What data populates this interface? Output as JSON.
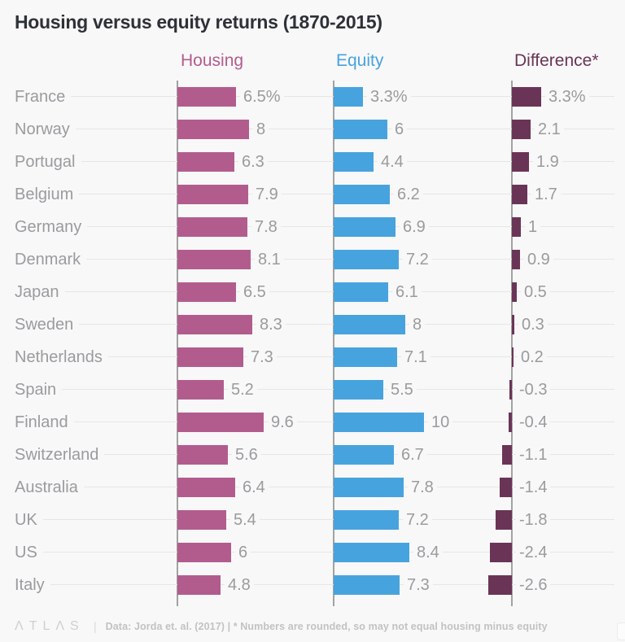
{
  "title": "Housing versus equity returns (1870-2015)",
  "palette": {
    "background": "#f8f8f8",
    "housing": "#b25c8e",
    "equity": "#47a3de",
    "difference": "#6a3457",
    "label_gray": "#9b9b9f",
    "axis_gray": "#a2a2a2",
    "hairline_gray": "#e6e6e6",
    "title_color": "#2e3137"
  },
  "chart_data": {
    "type": "bar",
    "orientation": "horizontal",
    "title": "Housing versus equity returns (1870-2015)",
    "unit": "% annual return",
    "legend_position": "column-headers-above-panels",
    "grid": "row-hairlines",
    "categories": [
      "France",
      "Norway",
      "Portugal",
      "Belgium",
      "Germany",
      "Denmark",
      "Japan",
      "Sweden",
      "Netherlands",
      "Spain",
      "Finland",
      "Switzerland",
      "Australia",
      "UK",
      "US",
      "Italy"
    ],
    "series": [
      {
        "name": "Housing",
        "color": "#b25c8e",
        "values": [
          6.5,
          8,
          6.3,
          7.9,
          7.8,
          8.1,
          6.5,
          8.3,
          7.3,
          5.2,
          9.6,
          5.6,
          6.4,
          5.4,
          6,
          4.8
        ],
        "labels": [
          "6.5%",
          "8",
          "6.3",
          "7.9",
          "7.8",
          "8.1",
          "6.5",
          "8.3",
          "7.3",
          "5.2",
          "9.6",
          "5.6",
          "6.4",
          "5.4",
          "6",
          "4.8"
        ],
        "xlim": [
          0,
          10
        ]
      },
      {
        "name": "Equity",
        "color": "#47a3de",
        "values": [
          3.3,
          6,
          4.4,
          6.2,
          6.9,
          7.2,
          6.1,
          8,
          7.1,
          5.5,
          10,
          6.7,
          7.8,
          7.2,
          8.4,
          7.3
        ],
        "labels": [
          "3.3%",
          "6",
          "4.4",
          "6.2",
          "6.9",
          "7.2",
          "6.1",
          "8",
          "7.1",
          "5.5",
          "10",
          "6.7",
          "7.8",
          "7.2",
          "8.4",
          "7.3"
        ],
        "xlim": [
          0,
          10
        ]
      },
      {
        "name": "Difference*",
        "color": "#6a3457",
        "values": [
          3.3,
          2.1,
          1.9,
          1.7,
          1,
          0.9,
          0.5,
          0.3,
          0.2,
          -0.3,
          -0.4,
          -1.1,
          -1.4,
          -1.8,
          -2.4,
          -2.6
        ],
        "labels": [
          "3.3%",
          "2.1",
          "1.9",
          "1.7",
          "1",
          "0.9",
          "0.5",
          "0.3",
          "0.2",
          "-0.3",
          "-0.4",
          "-1.1",
          "-1.4",
          "-1.8",
          "-2.4",
          "-2.6"
        ],
        "xlim": [
          -3,
          3.5
        ]
      }
    ]
  },
  "footer": {
    "logo": "ΛTLΛS",
    "divider": "|",
    "note": "Data: Jorda et. al. (2017) | * Numbers are rounded, so may not equal housing minus equity"
  }
}
